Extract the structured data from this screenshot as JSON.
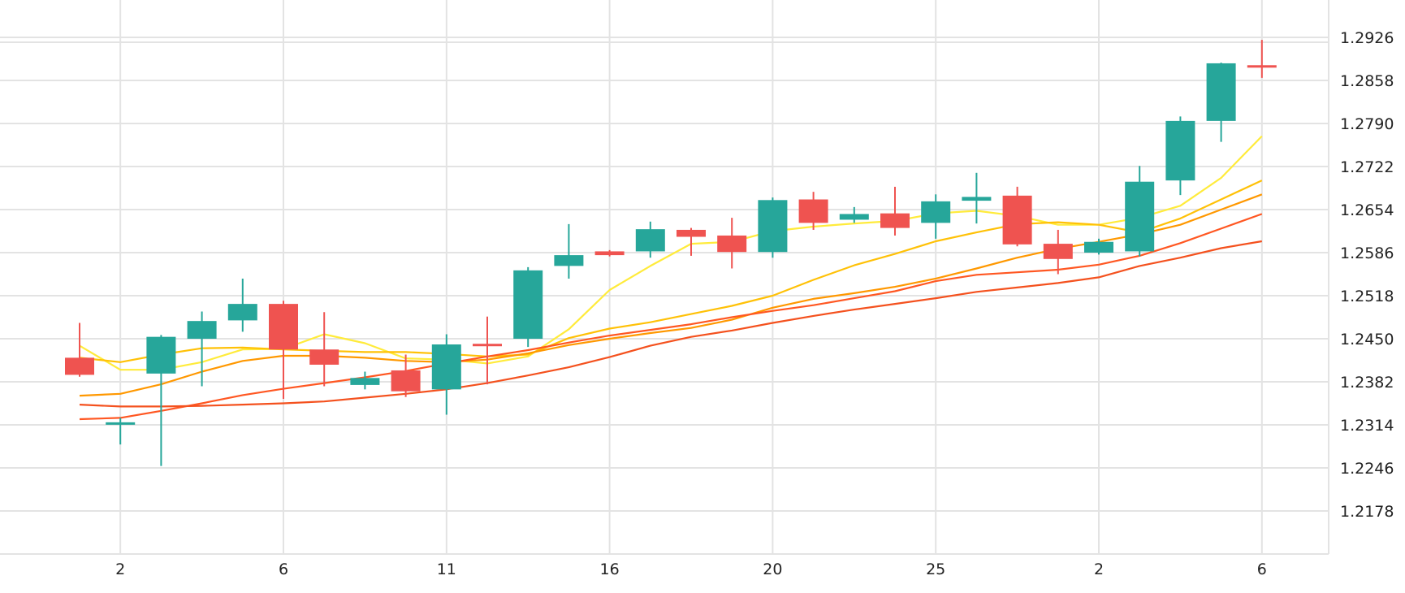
{
  "chart_data": {
    "type": "candlestick",
    "title": "",
    "xlabel": "",
    "ylabel": "",
    "ylim": [
      1.211,
      1.2985
    ],
    "grid": true,
    "x_tick_labels": [
      {
        "label": "2",
        "at": 1
      },
      {
        "label": "6",
        "at": 5
      },
      {
        "label": "11",
        "at": 9
      },
      {
        "label": "16",
        "at": 13
      },
      {
        "label": "20",
        "at": 17
      },
      {
        "label": "25",
        "at": 21
      },
      {
        "label": "2",
        "at": 25
      },
      {
        "label": "6",
        "at": 29
      }
    ],
    "y_tick_labels": [
      "1.2926",
      "1.2858",
      "1.2790",
      "1.2722",
      "1.2654",
      "1.2586",
      "1.2518",
      "1.2450",
      "1.2382",
      "1.2314",
      "1.2246",
      "1.2178"
    ],
    "colors": {
      "up": "#26a69a",
      "down": "#ef5350",
      "grid": "#e3e3e3"
    },
    "candles": [
      {
        "open": 1.242,
        "high": 1.2475,
        "low": 1.239,
        "close": 1.2393
      },
      {
        "open": 1.2318,
        "high": 1.2325,
        "low": 1.2283,
        "close": 1.2318
      },
      {
        "open": 1.2395,
        "high": 1.2456,
        "low": 1.2249,
        "close": 1.2453
      },
      {
        "open": 1.245,
        "high": 1.2493,
        "low": 1.2375,
        "close": 1.2478
      },
      {
        "open": 1.2479,
        "high": 1.2545,
        "low": 1.2461,
        "close": 1.2505
      },
      {
        "open": 1.2505,
        "high": 1.251,
        "low": 1.2355,
        "close": 1.2433
      },
      {
        "open": 1.2433,
        "high": 1.2492,
        "low": 1.2375,
        "close": 1.2409
      },
      {
        "open": 1.2377,
        "high": 1.2398,
        "low": 1.237,
        "close": 1.2388
      },
      {
        "open": 1.24,
        "high": 1.2425,
        "low": 1.2358,
        "close": 1.2367
      },
      {
        "open": 1.237,
        "high": 1.2457,
        "low": 1.233,
        "close": 1.2441
      },
      {
        "open": 1.2442,
        "high": 1.2485,
        "low": 1.2378,
        "close": 1.244
      },
      {
        "open": 1.245,
        "high": 1.2563,
        "low": 1.2437,
        "close": 1.2558
      },
      {
        "open": 1.2565,
        "high": 1.2631,
        "low": 1.2545,
        "close": 1.2582
      },
      {
        "open": 1.2588,
        "high": 1.259,
        "low": 1.258,
        "close": 1.2582
      },
      {
        "open": 1.2588,
        "high": 1.2635,
        "low": 1.2578,
        "close": 1.2623
      },
      {
        "open": 1.2622,
        "high": 1.2625,
        "low": 1.2581,
        "close": 1.2611
      },
      {
        "open": 1.2613,
        "high": 1.2641,
        "low": 1.2561,
        "close": 1.2587
      },
      {
        "open": 1.2587,
        "high": 1.2673,
        "low": 1.2578,
        "close": 1.2669
      },
      {
        "open": 1.267,
        "high": 1.2682,
        "low": 1.2622,
        "close": 1.2633
      },
      {
        "open": 1.2638,
        "high": 1.2658,
        "low": 1.2633,
        "close": 1.2647
      },
      {
        "open": 1.2648,
        "high": 1.269,
        "low": 1.2613,
        "close": 1.2625
      },
      {
        "open": 1.2633,
        "high": 1.2678,
        "low": 1.2608,
        "close": 1.2667
      },
      {
        "open": 1.2668,
        "high": 1.2712,
        "low": 1.2632,
        "close": 1.2674
      },
      {
        "open": 1.2676,
        "high": 1.269,
        "low": 1.2596,
        "close": 1.2599
      },
      {
        "open": 1.26,
        "high": 1.2622,
        "low": 1.2552,
        "close": 1.2576
      },
      {
        "open": 1.2586,
        "high": 1.2608,
        "low": 1.2583,
        "close": 1.2603
      },
      {
        "open": 1.2588,
        "high": 1.2723,
        "low": 1.258,
        "close": 1.2698
      },
      {
        "open": 1.27,
        "high": 1.2801,
        "low": 1.2677,
        "close": 1.2794
      },
      {
        "open": 1.2794,
        "high": 1.2886,
        "low": 1.2761,
        "close": 1.2885
      },
      {
        "open": 1.2882,
        "high": 1.2922,
        "low": 1.2862,
        "close": 1.2879
      }
    ],
    "series": [
      {
        "color": "#ffeb3b",
        "x": [
          0,
          1,
          2,
          3,
          4,
          5,
          6,
          7,
          8,
          9,
          10,
          11,
          12,
          13,
          14,
          15,
          16,
          17,
          18,
          19,
          20,
          21,
          22,
          23,
          24,
          25,
          26,
          27,
          28,
          29
        ],
        "values": [
          1.2439,
          1.2401,
          1.2401,
          1.2413,
          1.2433,
          1.2434,
          1.2457,
          1.2443,
          1.2419,
          1.2417,
          1.2411,
          1.2422,
          1.2465,
          1.2527,
          1.2565,
          1.26,
          1.2603,
          1.262,
          1.2627,
          1.2632,
          1.2636,
          1.2648,
          1.2652,
          1.2644,
          1.263,
          1.263,
          1.2641,
          1.266,
          1.2704,
          1.277
        ]
      },
      {
        "color": "#ffc107",
        "x": [
          0,
          1,
          2,
          3,
          4,
          5,
          6,
          7,
          8,
          9,
          10,
          11,
          12,
          13,
          14,
          15,
          16,
          17,
          18,
          19,
          20,
          21,
          22,
          23,
          24,
          25,
          26,
          27,
          28,
          29
        ],
        "values": [
          1.242,
          1.2413,
          1.2425,
          1.2435,
          1.2436,
          1.2433,
          1.2431,
          1.2429,
          1.2429,
          1.2426,
          1.2422,
          1.2425,
          1.2451,
          1.2466,
          1.2476,
          1.2489,
          1.2502,
          1.2518,
          1.2543,
          1.2566,
          1.2584,
          1.2604,
          1.2618,
          1.2631,
          1.2634,
          1.263,
          1.2618,
          1.264,
          1.267,
          1.27
        ]
      },
      {
        "color": "#ff9800",
        "x": [
          0,
          1,
          2,
          3,
          4,
          5,
          6,
          7,
          8,
          9,
          10,
          11,
          12,
          13,
          14,
          15,
          16,
          17,
          18,
          19,
          20,
          21,
          22,
          23,
          24,
          25,
          26,
          27,
          28,
          29
        ],
        "values": [
          1.236,
          1.2363,
          1.2378,
          1.2398,
          1.2415,
          1.2423,
          1.2423,
          1.242,
          1.2415,
          1.2413,
          1.2417,
          1.2427,
          1.244,
          1.245,
          1.2459,
          1.2467,
          1.248,
          1.2499,
          1.2513,
          1.2522,
          1.2532,
          1.2545,
          1.2561,
          1.2578,
          1.2592,
          1.2603,
          1.2615,
          1.263,
          1.2654,
          1.2678
        ]
      },
      {
        "color": "#ff5722",
        "x": [
          0,
          1,
          2,
          3,
          4,
          5,
          6,
          7,
          8,
          9,
          10,
          11,
          12,
          13,
          14,
          15,
          16,
          17,
          18,
          19,
          20,
          21,
          22,
          23,
          24,
          25,
          26,
          27,
          28,
          29
        ],
        "values": [
          1.2323,
          1.2325,
          1.2336,
          1.2348,
          1.2361,
          1.2371,
          1.238,
          1.2389,
          1.2399,
          1.2411,
          1.2422,
          1.2432,
          1.2444,
          1.2455,
          1.2464,
          1.2473,
          1.2484,
          1.2494,
          1.2503,
          1.2514,
          1.2525,
          1.2541,
          1.2551,
          1.2555,
          1.2559,
          1.2567,
          1.2581,
          1.2601,
          1.2624,
          1.2647
        ]
      },
      {
        "color": "#f4511e",
        "x": [
          0,
          1,
          2,
          3,
          4,
          5,
          6,
          7,
          8,
          9,
          10,
          11,
          12,
          13,
          14,
          15,
          16,
          17,
          18,
          19,
          20,
          21,
          22,
          23,
          24,
          25,
          26,
          27,
          28,
          29
        ],
        "values": [
          1.2346,
          1.2343,
          1.2343,
          1.2344,
          1.2346,
          1.2348,
          1.2351,
          1.2357,
          1.2363,
          1.237,
          1.238,
          1.2392,
          1.2405,
          1.2421,
          1.2439,
          1.2453,
          1.2463,
          1.2475,
          1.2486,
          1.2496,
          1.2505,
          1.2514,
          1.2524,
          1.2531,
          1.2538,
          1.2547,
          1.2565,
          1.2578,
          1.2593,
          1.2604
        ]
      }
    ]
  }
}
